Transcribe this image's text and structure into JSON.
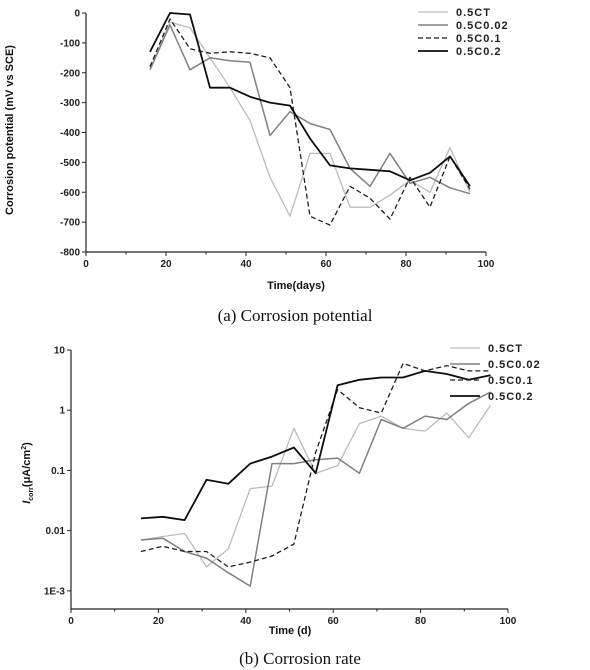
{
  "colors": {
    "0.5CT": "#bbbbbb",
    "0.5C0.02": "#808080",
    "0.5C0.1": "#1e1e1e",
    "0.5C0.2": "#0d0d0d"
  },
  "chart_data": [
    {
      "type": "line",
      "caption": "(a) Corrosion potential",
      "xlabel": "Time(days)",
      "ylabel": "Corrosion potential (mV vs SCE)",
      "xlim": [
        0,
        100
      ],
      "ylim": [
        -800,
        0
      ],
      "xticks": [
        "0",
        "20",
        "40",
        "60",
        "80",
        "100"
      ],
      "yticks": [
        "0",
        "-100",
        "-200",
        "-300",
        "-400",
        "-500",
        "-600",
        "-700",
        "-800"
      ],
      "legend": "top-right",
      "series": [
        {
          "name": "0.5CT",
          "style": "solid",
          "x": [
            16,
            21,
            26,
            31,
            36,
            41,
            46,
            51,
            56,
            61,
            66,
            71,
            76,
            81,
            86,
            91,
            96
          ],
          "y": [
            -190,
            -30,
            -50,
            -150,
            -250,
            -360,
            -550,
            -680,
            -470,
            -470,
            -650,
            -650,
            -610,
            -560,
            -600,
            -450,
            -600
          ]
        },
        {
          "name": "0.5C0.02",
          "style": "solid",
          "x": [
            16,
            21,
            26,
            31,
            36,
            41,
            46,
            51,
            56,
            61,
            66,
            71,
            76,
            81,
            86,
            91,
            96
          ],
          "y": [
            -190,
            -40,
            -190,
            -150,
            -160,
            -165,
            -410,
            -330,
            -370,
            -390,
            -520,
            -580,
            -470,
            -570,
            -550,
            -585,
            -605
          ]
        },
        {
          "name": "0.5C0.1",
          "style": "dashed",
          "x": [
            16,
            21,
            26,
            31,
            36,
            41,
            46,
            51,
            56,
            61,
            66,
            71,
            76,
            81,
            86,
            91,
            96
          ],
          "y": [
            -180,
            -20,
            -120,
            -135,
            -130,
            -135,
            -150,
            -250,
            -680,
            -710,
            -580,
            -620,
            -690,
            -550,
            -650,
            -480,
            -590
          ]
        },
        {
          "name": "0.5C0.2",
          "style": "solid",
          "x": [
            16,
            21,
            26,
            31,
            36,
            41,
            46,
            51,
            56,
            61,
            66,
            71,
            76,
            81,
            86,
            91,
            96
          ],
          "y": [
            -130,
            0,
            -5,
            -250,
            -250,
            -280,
            -300,
            -310,
            -420,
            -510,
            -520,
            -525,
            -530,
            -560,
            -535,
            -480,
            -580
          ]
        }
      ]
    },
    {
      "type": "line",
      "caption": "(b) Corrosion rate",
      "xlabel": "Time (d)",
      "ylabel_main": "I",
      "ylabel_sub": "corr",
      "ylabel_rest": "(μA/cm",
      "ylabel_sup": "2",
      "ylabel_end": ")",
      "yscale": "log",
      "xlim": [
        0,
        100
      ],
      "ylim": [
        0.0005,
        10
      ],
      "xticks": [
        "0",
        "20",
        "40",
        "60",
        "80",
        "100"
      ],
      "yticks": [
        "10",
        "1",
        "0.1",
        "0.01",
        "1E-3"
      ],
      "legend": "top-right",
      "series": [
        {
          "name": "0.5CT",
          "style": "solid",
          "x": [
            16,
            21,
            26,
            31,
            36,
            41,
            46,
            51,
            56,
            61,
            66,
            71,
            76,
            81,
            86,
            91,
            96
          ],
          "y": [
            0.007,
            0.008,
            0.009,
            0.0025,
            0.005,
            0.05,
            0.055,
            0.5,
            0.09,
            0.12,
            0.6,
            0.8,
            0.5,
            0.45,
            0.9,
            0.35,
            1.2
          ]
        },
        {
          "name": "0.5C0.02",
          "style": "solid",
          "x": [
            16,
            21,
            26,
            31,
            36,
            41,
            46,
            51,
            56,
            61,
            66,
            71,
            76,
            81,
            86,
            91,
            96
          ],
          "y": [
            0.007,
            0.0075,
            0.0045,
            0.0035,
            0.002,
            0.0012,
            0.13,
            0.13,
            0.15,
            0.16,
            0.09,
            0.7,
            0.5,
            0.8,
            0.7,
            1.3,
            2.0
          ]
        },
        {
          "name": "0.5C0.1",
          "style": "dashed",
          "x": [
            16,
            21,
            26,
            31,
            36,
            41,
            46,
            51,
            56,
            61,
            66,
            71,
            76,
            81,
            86,
            91,
            96
          ],
          "y": [
            0.0045,
            0.0055,
            0.0045,
            0.0045,
            0.0025,
            0.003,
            0.0038,
            0.006,
            0.2,
            2.2,
            1.1,
            0.9,
            6.0,
            4.5,
            5.5,
            4.5,
            4.5
          ]
        },
        {
          "name": "0.5C0.2",
          "style": "solid",
          "x": [
            16,
            21,
            26,
            31,
            36,
            41,
            46,
            51,
            56,
            61,
            66,
            71,
            76,
            81,
            86,
            91,
            96
          ],
          "y": [
            0.016,
            0.017,
            0.015,
            0.07,
            0.06,
            0.13,
            0.17,
            0.24,
            0.09,
            2.6,
            3.2,
            3.5,
            3.5,
            4.5,
            4.0,
            3.2,
            3.8
          ]
        }
      ]
    }
  ]
}
